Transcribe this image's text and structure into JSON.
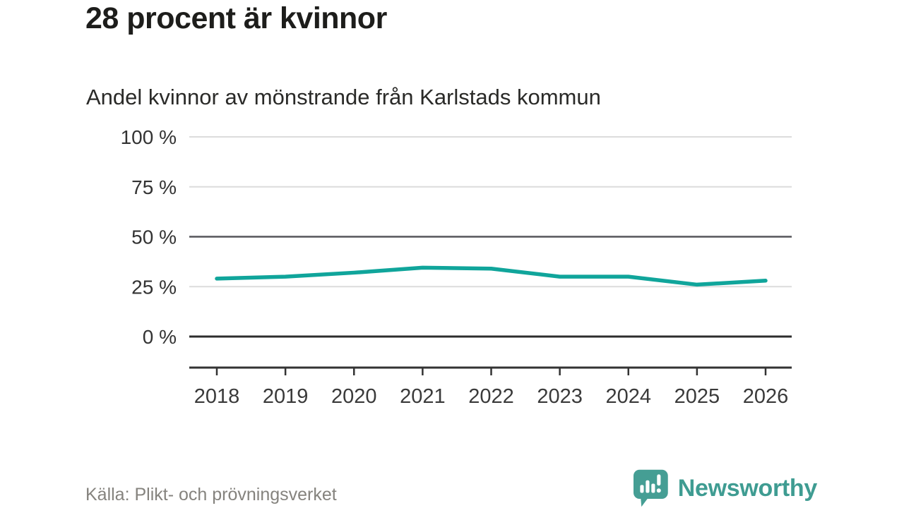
{
  "header": {
    "title": "28 procent är kvinnor",
    "subtitle": "Andel kvinnor av mönstrande från Karlstads kommun"
  },
  "chart_data": {
    "type": "line",
    "title": "28 procent är kvinnor",
    "subtitle": "Andel kvinnor av mönstrande från Karlstads kommun",
    "x": [
      2018,
      2019,
      2020,
      2021,
      2022,
      2023,
      2024,
      2025,
      2026
    ],
    "series": [
      {
        "name": "Andel kvinnor av mönstrande",
        "values": [
          29,
          30,
          32,
          34.5,
          34,
          30,
          30,
          26,
          28
        ]
      }
    ],
    "xlabel": "",
    "ylabel": "",
    "ylim": [
      0,
      100
    ],
    "y_ticks": [
      {
        "value": 100,
        "label": "100 %",
        "style": "light"
      },
      {
        "value": 75,
        "label": "75 %",
        "style": "light"
      },
      {
        "value": 50,
        "label": "50 %",
        "style": "mid"
      },
      {
        "value": 25,
        "label": "25 %",
        "style": "light"
      },
      {
        "value": 0,
        "label": "0 %",
        "style": "dark"
      }
    ],
    "grid": "horizontal",
    "legend": "none",
    "line_color": "#10a59b"
  },
  "footer": {
    "source": "Källa: Plikt- och prövningsverket",
    "logo_text": "Newsworthy"
  },
  "colors": {
    "grid_light": "#dcdcdc",
    "grid_mid": "#55555a",
    "grid_dark": "#2d2d2d",
    "axis": "#333333",
    "y_label": "#333333",
    "x_label": "#3a3a3a",
    "logo_teal": "#459e94"
  }
}
